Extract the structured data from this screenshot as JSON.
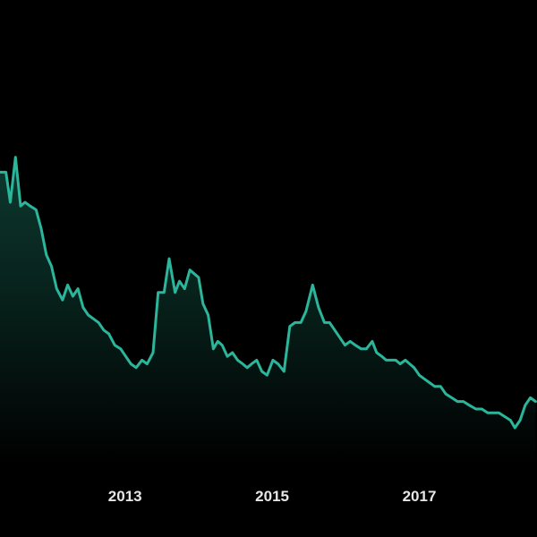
{
  "chart_data": {
    "type": "area",
    "title": "",
    "xlabel": "",
    "ylabel": "",
    "x_tick_labels": [
      "2013",
      "2015",
      "2017"
    ],
    "x_tick_values": [
      2013,
      2015,
      2017
    ],
    "xlim": [
      2011.3,
      2018.6
    ],
    "ylim": [
      0,
      100
    ],
    "grid": false,
    "legend": "none",
    "series": [
      {
        "x": [
          2011.3,
          2011.38,
          2011.44,
          2011.51,
          2011.58,
          2011.64,
          2011.71,
          2011.79,
          2011.86,
          2011.93,
          2012.0,
          2012.07,
          2012.15,
          2012.22,
          2012.29,
          2012.36,
          2012.43,
          2012.5,
          2012.57,
          2012.64,
          2012.71,
          2012.78,
          2012.86,
          2012.94,
          2013.01,
          2013.08,
          2013.15,
          2013.23,
          2013.3,
          2013.38,
          2013.45,
          2013.53,
          2013.6,
          2013.68,
          2013.74,
          2013.81,
          2013.88,
          2013.94,
          2014.0,
          2014.06,
          2014.13,
          2014.2,
          2014.26,
          2014.32,
          2014.39,
          2014.46,
          2014.53,
          2014.6,
          2014.66,
          2014.72,
          2014.79,
          2014.86,
          2014.93,
          2015.01,
          2015.08,
          2015.16,
          2015.24,
          2015.31,
          2015.39,
          2015.46,
          2015.55,
          2015.63,
          2015.71,
          2015.78,
          2015.85,
          2015.92,
          2015.99,
          2016.06,
          2016.13,
          2016.21,
          2016.28,
          2016.36,
          2016.42,
          2016.49,
          2016.55,
          2016.61,
          2016.68,
          2016.74,
          2016.81,
          2016.87,
          2016.93,
          2017.0,
          2017.07,
          2017.14,
          2017.21,
          2017.29,
          2017.36,
          2017.44,
          2017.52,
          2017.6,
          2017.68,
          2017.77,
          2017.85,
          2017.93,
          2018.0,
          2018.08,
          2018.16,
          2018.24,
          2018.3,
          2018.37,
          2018.44,
          2018.51,
          2018.58
        ],
        "y": [
          78,
          78,
          70,
          82,
          69,
          70,
          69,
          68,
          63,
          56,
          53,
          47,
          44,
          48,
          45,
          47,
          42,
          40,
          39,
          38,
          36,
          35,
          32,
          31,
          29,
          27,
          26,
          28,
          27,
          30,
          46,
          46,
          55,
          46,
          49,
          47,
          52,
          51,
          50,
          43,
          40,
          31,
          33,
          32,
          29,
          30,
          28,
          27,
          26,
          27,
          28,
          25,
          24,
          28,
          27,
          25,
          37,
          38,
          38,
          41,
          48,
          42,
          38,
          38,
          36,
          34,
          32,
          33,
          32,
          31,
          31,
          33,
          30,
          29,
          28,
          28,
          28,
          27,
          28,
          27,
          26,
          24,
          23,
          22,
          21,
          21,
          19,
          18,
          17,
          17,
          16,
          15,
          15,
          14,
          14,
          14,
          13,
          12,
          10,
          12,
          16,
          18,
          17
        ]
      }
    ],
    "colors": {
      "background": "#000000",
      "line": "#2bb69b",
      "fill_top": "#0e3f34",
      "tick_label": "#e6e6e6"
    }
  }
}
